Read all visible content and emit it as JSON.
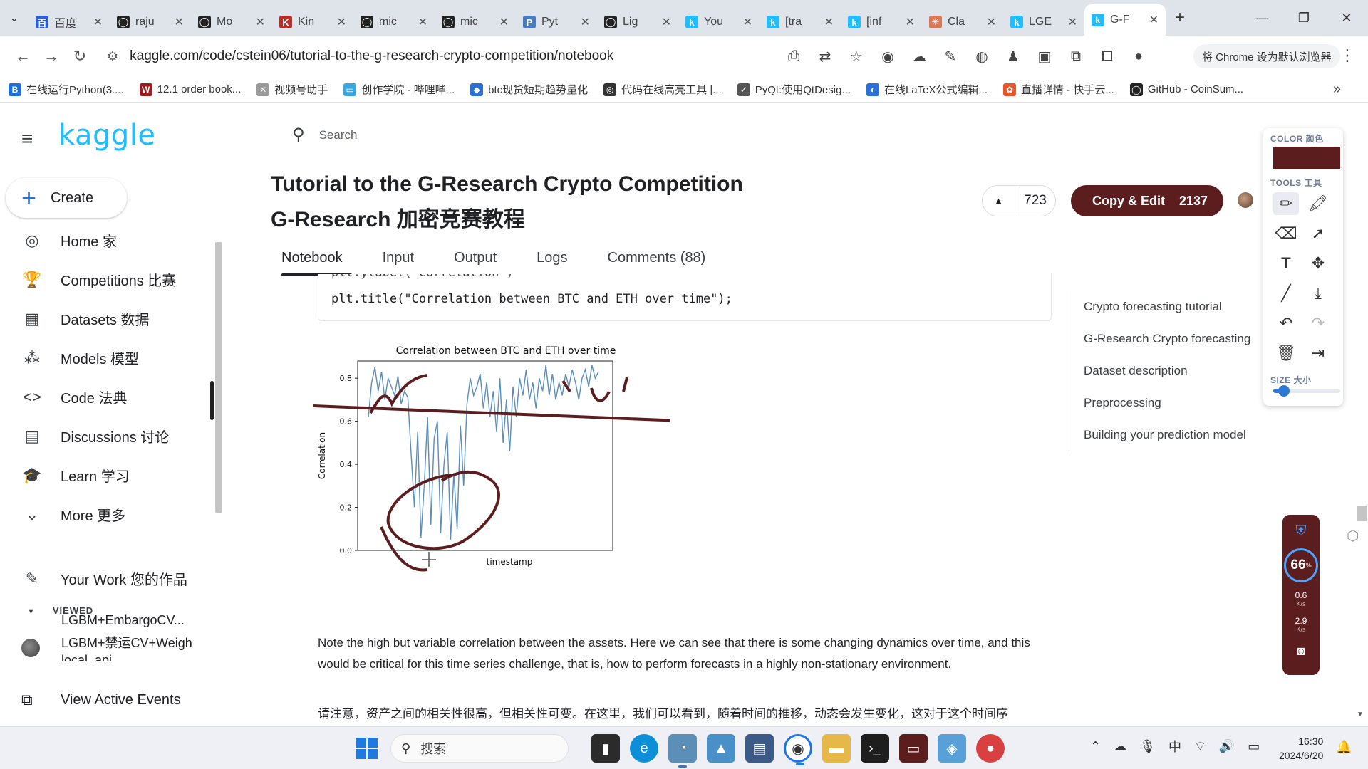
{
  "browser": {
    "tabs": [
      {
        "label": "百度",
        "favicon_color": "#2e5fd6",
        "favicon_char": "百"
      },
      {
        "label": "raju",
        "favicon_color": "#222222",
        "favicon_char": "◯"
      },
      {
        "label": "Mo",
        "favicon_color": "#222222",
        "favicon_char": "◯"
      },
      {
        "label": "Kin",
        "favicon_color": "#b4302a",
        "favicon_char": "K"
      },
      {
        "label": "mic",
        "favicon_color": "#222222",
        "favicon_char": "◯"
      },
      {
        "label": "mic",
        "favicon_color": "#222222",
        "favicon_char": "◯"
      },
      {
        "label": "Pyt",
        "favicon_color": "#4b7bbf",
        "favicon_char": "P"
      },
      {
        "label": "Lig",
        "favicon_color": "#222222",
        "favicon_char": "◯"
      },
      {
        "label": "You",
        "favicon_color": "#20beff",
        "favicon_char": "k"
      },
      {
        "label": "[tra",
        "favicon_color": "#20beff",
        "favicon_char": "k"
      },
      {
        "label": "[inf",
        "favicon_color": "#20beff",
        "favicon_char": "k"
      },
      {
        "label": "Cla",
        "favicon_color": "#d97757",
        "favicon_char": "✳"
      },
      {
        "label": "LGE",
        "favicon_color": "#20beff",
        "favicon_char": "k"
      },
      {
        "label": "G-F",
        "favicon_color": "#20beff",
        "favicon_char": "k",
        "active": true
      }
    ],
    "url": "kaggle.com/code/cstein06/tutorial-to-the-g-research-crypto-competition/notebook",
    "default_browser_label": "将 Chrome 设为默认浏览器",
    "bookmarks": [
      {
        "label": "在线运行Python(3....",
        "color": "#1f6fd6",
        "char": "B"
      },
      {
        "label": "12.1 order book...",
        "color": "#9b1c1c",
        "char": "W"
      },
      {
        "label": "视频号助手",
        "color": "#9a9a9a",
        "char": "✕"
      },
      {
        "label": "创作学院 - 哔哩哔...",
        "color": "#3aa6e0",
        "char": "▭"
      },
      {
        "label": "btc现货短期趋势量化",
        "color": "#2a6fd6",
        "char": "◆"
      },
      {
        "label": "代码在线高亮工具 |...",
        "color": "#333333",
        "char": "◎"
      },
      {
        "label": "PyQt:使用QtDesig...",
        "color": "#555555",
        "char": "✓"
      },
      {
        "label": "在线LaTeX公式编辑...",
        "color": "#2a6fd6",
        "char": "◐"
      },
      {
        "label": "直播详情 - 快手云...",
        "color": "#e8562a",
        "char": "✿"
      },
      {
        "label": "GitHub - CoinSum...",
        "color": "#222222",
        "char": "◯"
      }
    ]
  },
  "kaggle": {
    "logo": "kaggle",
    "create_label": "Create",
    "nav": [
      {
        "label": "Home 家",
        "icon": "compass-icon",
        "glyph": "◎"
      },
      {
        "label": "Competitions 比赛",
        "icon": "trophy-icon",
        "glyph": "🏆"
      },
      {
        "label": "Datasets 数据",
        "icon": "table-icon",
        "glyph": "▦"
      },
      {
        "label": "Models 模型",
        "icon": "models-icon",
        "glyph": "⁂"
      },
      {
        "label": "Code 法典",
        "icon": "code-icon",
        "glyph": "<>",
        "active": true
      },
      {
        "label": "Discussions 讨论",
        "icon": "discussion-icon",
        "glyph": "▤"
      },
      {
        "label": "Learn 学习",
        "icon": "graduation-cap-icon",
        "glyph": "🎓"
      },
      {
        "label": "More 更多",
        "icon": "chevron-down-icon",
        "glyph": "⌄"
      }
    ],
    "your_work": "Your Work 您的作品",
    "viewed_heading": "VIEWED",
    "viewed": [
      "LGBM+EmbargoCV...",
      "LGBM+禁运CV+Weigh",
      "local_api"
    ],
    "view_active_events": "View Active Events",
    "search_placeholder": "Search"
  },
  "notebook": {
    "title_en": "Tutorial to the G-Research Crypto Competition",
    "title_cn": "G-Research 加密竞赛教程",
    "upvotes": "723",
    "copy_edit_label": "Copy & Edit",
    "copy_edit_count": "2137",
    "tabs": [
      "Notebook",
      "Input",
      "Output",
      "Logs",
      "Comments (88)"
    ],
    "code_lines": [
      "plt.ylabel('Correlation')",
      "plt.title(\"Correlation between BTC and ETH over time\");"
    ],
    "note_en": "Note the high but variable correlation between the assets. Here we can see that there is some changing dynamics over time, and this would be critical for this time series challenge, that is, how to perform forecasts in a highly non-stationary environment.",
    "note_cn": "请注意，资产之间的相关性很高，但相关性可变。在这里，我们可以看到，随着时间的推移，动态会发生变化，这对于这个时间序",
    "toc": [
      "Crypto forecasting tutorial",
      "G-Research Crypto forecasting",
      "Dataset description",
      "Preprocessing",
      "Building your prediction model"
    ]
  },
  "chart_data": {
    "type": "line",
    "title": "Correlation between BTC and ETH over time",
    "xlabel": "timestamp",
    "ylabel": "Correlation",
    "yticks": [
      "0.0",
      "0.2",
      "0.4",
      "0.6",
      "0.8"
    ],
    "ylim": [
      0,
      0.88
    ],
    "grid": false,
    "series": [
      {
        "color": "#5b8db8",
        "values": [
          0.62,
          0.78,
          0.85,
          0.74,
          0.83,
          0.7,
          0.8,
          0.76,
          0.72,
          0.81,
          0.68,
          0.74,
          0.71,
          0.45,
          0.2,
          0.55,
          0.06,
          0.3,
          0.62,
          0.12,
          0.52,
          0.6,
          0.08,
          0.4,
          0.55,
          0.05,
          0.36,
          0.1,
          0.58,
          0.3,
          0.68,
          0.8,
          0.72,
          0.76,
          0.82,
          0.66,
          0.78,
          0.62,
          0.74,
          0.55,
          0.8,
          0.5,
          0.7,
          0.46,
          0.76,
          0.62,
          0.8,
          0.72,
          0.84,
          0.7,
          0.78,
          0.66,
          0.8,
          0.74,
          0.86,
          0.72,
          0.82,
          0.7,
          0.78,
          0.72,
          0.82,
          0.76,
          0.84,
          0.78,
          0.7,
          0.8,
          0.84,
          0.76,
          0.86,
          0.8,
          0.83
        ]
      }
    ]
  },
  "annotation_tool": {
    "color_label": "COLOR 颜色",
    "tools_label": "TOOLS 工具",
    "size_label": "SIZE 大小",
    "color": "#5c1d1f",
    "size_level": 0.16
  },
  "speed_widget": {
    "percent": "66",
    "up_rate": "0.6",
    "down_rate": "2.9",
    "unit": "K/s"
  },
  "taskbar": {
    "search_label": "搜索",
    "time": "16:30",
    "date": "2024/6/20",
    "ime": "中"
  }
}
